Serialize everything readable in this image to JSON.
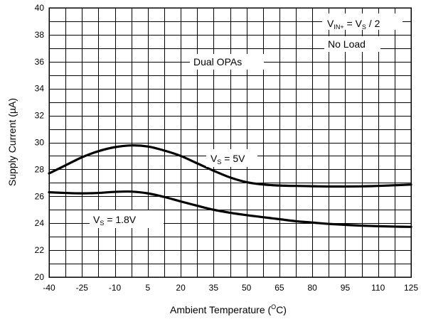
{
  "chart_data": {
    "type": "line",
    "x_label_prefix": "Ambient Temperature (",
    "x_label_sup": "O",
    "x_label_suffix": "C)",
    "y_label": "Supply Current (µA)",
    "x_ticks": [
      "-40",
      "-25",
      "-10",
      "5",
      "20",
      "35",
      "50",
      "65",
      "80",
      "95",
      "110",
      "125"
    ],
    "y_ticks": [
      "20",
      "22",
      "24",
      "26",
      "28",
      "30",
      "32",
      "34",
      "36",
      "38",
      "40"
    ],
    "xlim": [
      -40,
      125
    ],
    "ylim": [
      20,
      40
    ],
    "grid": true,
    "series": [
      {
        "label_main": "V",
        "label_sub": "S",
        "label_rest": " = 5V",
        "x": [
          -40,
          -32.5,
          -25,
          -17.5,
          -10,
          -2.5,
          5,
          12.5,
          20,
          27.5,
          35,
          42.5,
          50,
          57.5,
          65,
          72.5,
          80,
          87.5,
          95,
          102.5,
          110,
          117.5,
          125
        ],
        "y": [
          27.7,
          28.3,
          28.9,
          29.35,
          29.65,
          29.78,
          29.7,
          29.4,
          29.0,
          28.45,
          27.9,
          27.4,
          27.05,
          26.88,
          26.8,
          26.77,
          26.75,
          26.73,
          26.73,
          26.74,
          26.77,
          26.82,
          26.87
        ]
      },
      {
        "label_main": "V",
        "label_sub": "S",
        "label_rest": " = 1.8V",
        "x": [
          -40,
          -32.5,
          -25,
          -17.5,
          -10,
          -2.5,
          5,
          12.5,
          20,
          27.5,
          35,
          42.5,
          50,
          57.5,
          65,
          72.5,
          80,
          87.5,
          95,
          102.5,
          110,
          117.5,
          125
        ],
        "y": [
          26.3,
          26.25,
          26.22,
          26.25,
          26.33,
          26.35,
          26.22,
          25.95,
          25.62,
          25.3,
          25.0,
          24.78,
          24.6,
          24.45,
          24.3,
          24.15,
          24.05,
          23.95,
          23.88,
          23.82,
          23.78,
          23.75,
          23.73
        ]
      }
    ],
    "annotations": {
      "condition_v": "V",
      "condition_sub1": "IN+",
      "condition_mid": " = V",
      "condition_sub2": "S",
      "condition_end": " / 2",
      "no_load": "No Load",
      "dual": "Dual OPAs"
    }
  }
}
